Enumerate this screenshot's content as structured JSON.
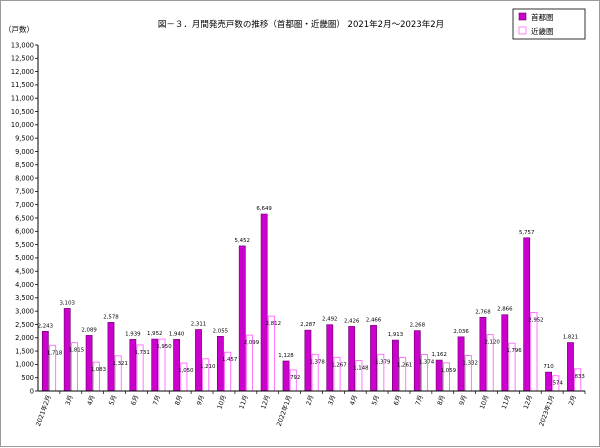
{
  "chart_data": {
    "type": "bar",
    "title": "図－３．月間発売戸数の推移（首都圏・近畿圏） 2021年2月～2023年2月",
    "ylabel": "（戸数）",
    "xlabel": "",
    "ylim": [
      0,
      13000
    ],
    "ytick_step": 500,
    "grid": false,
    "legend_position": "top-right",
    "categories": [
      "2021年2月",
      "3月",
      "4月",
      "5月",
      "6月",
      "7月",
      "8月",
      "9月",
      "10月",
      "11月",
      "12月",
      "2022年1月",
      "2月",
      "3月",
      "4月",
      "5月",
      "6月",
      "7月",
      "8月",
      "9月",
      "10月",
      "11月",
      "12月",
      "2023年1月",
      "2月"
    ],
    "series": [
      {
        "name": "首都圏",
        "color": "#cc00cc",
        "style": "filled",
        "values": [
          2243,
          3103,
          2089,
          2578,
          1939,
          1952,
          1940,
          2311,
          2055,
          5452,
          6649,
          1128,
          2287,
          2492,
          2426,
          2466,
          1913,
          2268,
          1162,
          2036,
          2768,
          2866,
          5757,
          710,
          1821
        ],
        "labels": [
          "2,243",
          "3,103",
          "2,089",
          "2,578",
          "1,939",
          "1,952",
          "1,940",
          "2,311",
          "2,055",
          "5,452",
          "6,649",
          "1,128",
          "2,287",
          "2,492",
          "2,426",
          "2,466",
          "1,913",
          "2,268",
          "1,162",
          "2,036",
          "2,768",
          "2,866",
          "5,757",
          "710",
          "1,821"
        ]
      },
      {
        "name": "近畿圏",
        "color": "#ff66ff",
        "style": "outline",
        "values": [
          1718,
          1815,
          1083,
          1321,
          1731,
          1950,
          1050,
          1210,
          1457,
          2099,
          2812,
          792,
          1378,
          1267,
          1148,
          1379,
          1261,
          1374,
          1059,
          1332,
          2120,
          1796,
          2952,
          574,
          833
        ],
        "labels": [
          "1,718",
          "1,815",
          "1,083",
          "1,321",
          "1,731",
          "1,950",
          "1,050",
          "1,210",
          "1,457",
          "2,099",
          "2,812",
          "792",
          "1,378",
          "1,267",
          "1,148",
          "1,379",
          "1,261",
          "1,374",
          "1,059",
          "1,332",
          "2,120",
          "1,796",
          "2,952",
          "574",
          "833"
        ]
      }
    ]
  }
}
